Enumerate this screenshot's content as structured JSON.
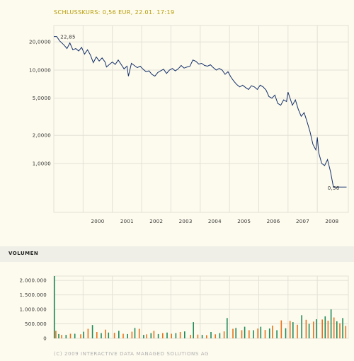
{
  "header": {
    "title": "SCHLUSSKURS: 0,56 EUR, 22.01. 17:19"
  },
  "volume_section": {
    "label": "VOLUMEN"
  },
  "footer": {
    "copyright": "(C) 2009 INTERACTIVE DATA MANAGED SOLUTIONS AG"
  },
  "colors": {
    "price_line": "#14306b",
    "volume_up": "#e8731a",
    "volume_down": "#1f8a5a",
    "grid": "#e3e1d6"
  },
  "chart_data": [
    {
      "type": "line",
      "scale": "log",
      "title": "SCHLUSSKURS: 0,56 EUR, 22.01. 17:19",
      "xlabel": "",
      "ylabel": "",
      "x_tick_labels": [
        "2000",
        "2001",
        "2002",
        "2003",
        "2004",
        "2005",
        "2006",
        "2007",
        "2008"
      ],
      "y_tick_labels": [
        "20,0000",
        "10,0000",
        "5,0000",
        "2,0000",
        "1,0000"
      ],
      "y_ticks": [
        20,
        10,
        5,
        2,
        1
      ],
      "ylim": [
        0.3,
        30
      ],
      "xlim": [
        1999.0,
        2009.06
      ],
      "grid": true,
      "annotations": [
        {
          "text": "22,85",
          "x": 1999.15,
          "y": 22.85
        },
        {
          "text": "0,56",
          "x": 2008.83,
          "y": 0.56
        }
      ],
      "series": [
        {
          "x": [
            1999.0,
            1999.1,
            1999.2,
            1999.35,
            1999.45,
            1999.55,
            1999.65,
            1999.75,
            1999.85,
            1999.95,
            2000.05,
            2000.15,
            2000.25,
            2000.35,
            2000.45,
            2000.55,
            2000.65,
            2000.75,
            2000.8,
            2000.9,
            2001.0,
            2001.1,
            2001.2,
            2001.3,
            2001.4,
            2001.5,
            2001.55,
            2001.65,
            2001.75,
            2001.85,
            2001.95,
            2002.05,
            2002.15,
            2002.25,
            2002.35,
            2002.45,
            2002.55,
            2002.65,
            2002.75,
            2002.85,
            2002.95,
            2003.05,
            2003.15,
            2003.25,
            2003.35,
            2003.45,
            2003.55,
            2003.65,
            2003.75,
            2003.85,
            2003.95,
            2004.05,
            2004.15,
            2004.25,
            2004.35,
            2004.45,
            2004.55,
            2004.65,
            2004.75,
            2004.85,
            2004.95,
            2005.05,
            2005.15,
            2005.25,
            2005.35,
            2005.45,
            2005.55,
            2005.65,
            2005.75,
            2005.85,
            2005.95,
            2006.05,
            2006.15,
            2006.25,
            2006.35,
            2006.45,
            2006.55,
            2006.65,
            2006.75,
            2006.85,
            2006.95,
            2007.0,
            2007.05,
            2007.15,
            2007.25,
            2007.35,
            2007.45,
            2007.55,
            2007.65,
            2007.75,
            2007.85,
            2007.95,
            2008.0,
            2008.05,
            2008.15,
            2008.25,
            2008.35,
            2008.45,
            2008.55,
            2008.65,
            2008.75,
            2008.85,
            2008.95,
            2009.0
          ],
          "y": [
            22.85,
            22.85,
            20.5,
            18.5,
            17.0,
            19.5,
            16.5,
            17.0,
            16.0,
            17.5,
            14.8,
            16.5,
            14.5,
            12.0,
            13.8,
            12.5,
            13.5,
            12.2,
            10.8,
            11.5,
            12.2,
            11.5,
            12.8,
            11.5,
            10.3,
            11.0,
            8.6,
            11.8,
            11.2,
            10.6,
            11.0,
            10.2,
            9.6,
            9.8,
            9.0,
            8.6,
            9.4,
            9.8,
            10.2,
            9.2,
            10.0,
            10.4,
            9.8,
            10.3,
            11.2,
            10.5,
            10.8,
            11.0,
            12.8,
            12.4,
            11.6,
            11.8,
            11.2,
            11.0,
            11.4,
            10.6,
            10.0,
            10.4,
            10.0,
            9.0,
            9.6,
            8.4,
            7.6,
            7.0,
            6.6,
            6.9,
            6.5,
            6.2,
            6.8,
            6.6,
            6.2,
            6.9,
            6.6,
            6.1,
            5.2,
            5.0,
            5.4,
            4.4,
            4.2,
            4.8,
            4.6,
            5.8,
            5.2,
            4.2,
            4.8,
            3.8,
            3.2,
            3.5,
            2.8,
            2.2,
            1.6,
            1.4,
            1.9,
            1.3,
            1.0,
            0.95,
            1.1,
            0.82,
            0.56,
            0.56,
            0.56,
            0.56,
            0.56,
            0.56
          ]
        }
      ]
    },
    {
      "type": "bar",
      "title": "VOLUMEN",
      "xlabel": "",
      "ylabel": "",
      "y_tick_labels": [
        "2.000.000",
        "1.500.000",
        "1.000.000",
        "500.000",
        "0"
      ],
      "y_ticks": [
        2000000,
        1500000,
        1000000,
        500000,
        0
      ],
      "ylim": [
        0,
        2150000
      ],
      "xlim": [
        1999.0,
        2009.06
      ],
      "grid": true,
      "series": [
        {
          "name": "",
          "x": [
            1999.05,
            1999.25,
            1999.55,
            1999.9,
            2000.15,
            2000.45,
            2000.75,
            2001.05,
            2001.35,
            2001.65,
            2001.9,
            2002.15,
            2002.4,
            2002.7,
            2003.0,
            2003.3,
            2003.65,
            2003.9,
            2004.2,
            2004.5,
            2004.8,
            2005.1,
            2005.4,
            2005.65,
            2005.95,
            2006.2,
            2006.45,
            2006.75,
            2007.05,
            2007.3,
            2007.6,
            2007.85,
            2008.15,
            2008.35,
            2008.55,
            2008.75,
            2008.95
          ],
          "values": [
            260000,
            120000,
            160000,
            140000,
            330000,
            220000,
            300000,
            190000,
            160000,
            230000,
            330000,
            140000,
            260000,
            180000,
            160000,
            220000,
            120000,
            130000,
            110000,
            140000,
            240000,
            330000,
            280000,
            280000,
            340000,
            290000,
            440000,
            620000,
            600000,
            470000,
            640000,
            580000,
            650000,
            610000,
            720000,
            520000,
            430000
          ]
        },
        {
          "name": "",
          "x": [
            1999.0,
            1999.15,
            1999.4,
            1999.7,
            2000.0,
            2000.3,
            2000.6,
            2000.85,
            2001.2,
            2001.5,
            2001.75,
            2002.05,
            2002.3,
            2002.55,
            2002.85,
            2003.15,
            2003.45,
            2003.75,
            2004.05,
            2004.35,
            2004.65,
            2004.9,
            2005.2,
            2005.5,
            2005.8,
            2006.05,
            2006.35,
            2006.6,
            2006.9,
            2007.15,
            2007.45,
            2007.7,
            2007.95,
            2008.25,
            2008.45,
            2008.65,
            2008.85
          ],
          "values": [
            2150000,
            150000,
            120000,
            160000,
            230000,
            460000,
            180000,
            200000,
            260000,
            150000,
            360000,
            120000,
            180000,
            150000,
            200000,
            180000,
            240000,
            560000,
            120000,
            220000,
            180000,
            700000,
            360000,
            400000,
            280000,
            400000,
            340000,
            280000,
            350000,
            560000,
            800000,
            500000,
            660000,
            760000,
            1000000,
            590000,
            700000
          ]
        }
      ]
    }
  ]
}
